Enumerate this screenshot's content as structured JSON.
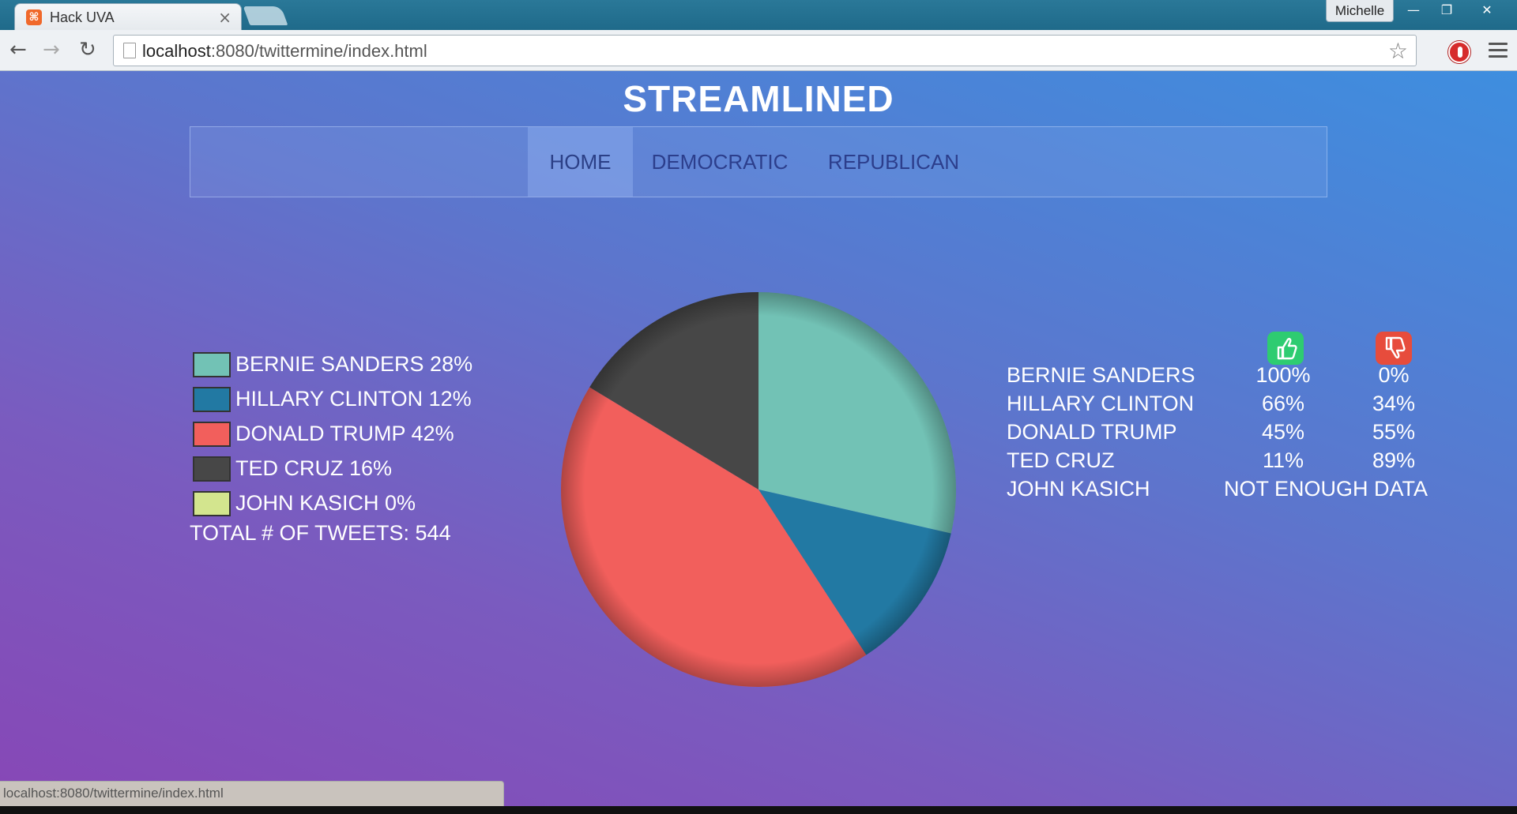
{
  "browser": {
    "tab_title": "Hack UVA",
    "tab_close": "×",
    "profile_name": "Michelle",
    "url_host": "localhost",
    "url_rest": ":8080/twittermine/index.html",
    "status_url": "localhost:8080/twittermine/index.html",
    "win_minimize": "—",
    "win_restore": "❐",
    "win_close": "✕",
    "back": "←",
    "forward": "→",
    "reload": "↻",
    "bookmark_star": "☆"
  },
  "site": {
    "title": "STREAMLINED",
    "nav": {
      "home": "HOME",
      "democratic": "DEMOCRATIC",
      "republican": "REPUBLICAN"
    }
  },
  "legend": [
    {
      "label": "BERNIE SANDERS 28%",
      "color": "#72c2b5"
    },
    {
      "label": "HILLARY CLINTON 12%",
      "color": "#2279a3"
    },
    {
      "label": "DONALD TRUMP 42%",
      "color": "#f25f5c"
    },
    {
      "label": "TED CRUZ 16%",
      "color": "#474747"
    },
    {
      "label": "JOHN KASICH 0%",
      "color": "#d3e58e"
    }
  ],
  "total_tweets": "TOTAL # OF TWEETS: 544",
  "sentiment": {
    "positive_icon": "thumbs-up-icon",
    "negative_icon": "thumbs-down-icon",
    "rows": [
      {
        "name": "BERNIE SANDERS",
        "positive": "100%",
        "negative": "0%"
      },
      {
        "name": "HILLARY CLINTON",
        "positive": "66%",
        "negative": "34%"
      },
      {
        "name": "DONALD TRUMP",
        "positive": "45%",
        "negative": "55%"
      },
      {
        "name": "TED CRUZ",
        "positive": "11%",
        "negative": "89%"
      }
    ],
    "kasich": {
      "name": "JOHN KASICH",
      "note": "NOT ENOUGH DATA"
    }
  },
  "chart_data": {
    "type": "pie",
    "categories": [
      "BERNIE SANDERS",
      "HILLARY CLINTON",
      "DONALD TRUMP",
      "TED CRUZ",
      "JOHN KASICH"
    ],
    "values": [
      28,
      12,
      42,
      16,
      0
    ],
    "colors": [
      "#72c2b5",
      "#2279a3",
      "#f25f5c",
      "#474747",
      "#d3e58e"
    ]
  }
}
